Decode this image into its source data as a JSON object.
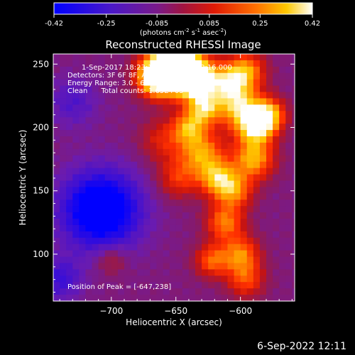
{
  "colorbar": {
    "ticks": [
      "-0.42",
      "-0.25",
      "-0.085",
      "0.085",
      "0.25",
      "0.42"
    ],
    "unit_main": "(photons cm",
    "unit_sup1": "-2",
    "unit_mid1": " s",
    "unit_sup2": "-1",
    "unit_mid2": " asec",
    "unit_sup3": "-2",
    "unit_end": ")"
  },
  "footer_date": "6-Sep-2022 12:11",
  "chart_data": {
    "type": "heatmap",
    "title": "Reconstructed RHESSI Image",
    "xlabel": "Heliocentric X (arcsec)",
    "ylabel": "Heliocentric Y (arcsec)",
    "xlim": [
      -745,
      -558
    ],
    "ylim": [
      63,
      258
    ],
    "x_ticks": [
      -700,
      -650,
      -600
    ],
    "x_tick_labels": [
      "−700",
      "−650",
      "−600"
    ],
    "y_ticks": [
      100,
      150,
      200,
      250
    ],
    "y_tick_labels": [
      "100",
      "150",
      "200",
      "250"
    ],
    "value_range": [
      -0.42,
      0.42
    ],
    "colormap": [
      "#0000ff",
      "#3b0fd6",
      "#6a1bb0",
      "#8b1a5e",
      "#c8140f",
      "#ff3000",
      "#ff8000",
      "#ffd000",
      "#ffffff"
    ],
    "annotations": [
      "1-Sep-2017 18:23:16.000 to 18:29:16.000",
      "Detectors: 3F 6F 8F, Att 0",
      "Energy Range: 3.0 - 6.0 keV",
      "Clean      Total counts: 1.65E+05"
    ],
    "peak_label": "Position of Peak = [-647,238]",
    "peak_position": [
      -647,
      238
    ]
  }
}
